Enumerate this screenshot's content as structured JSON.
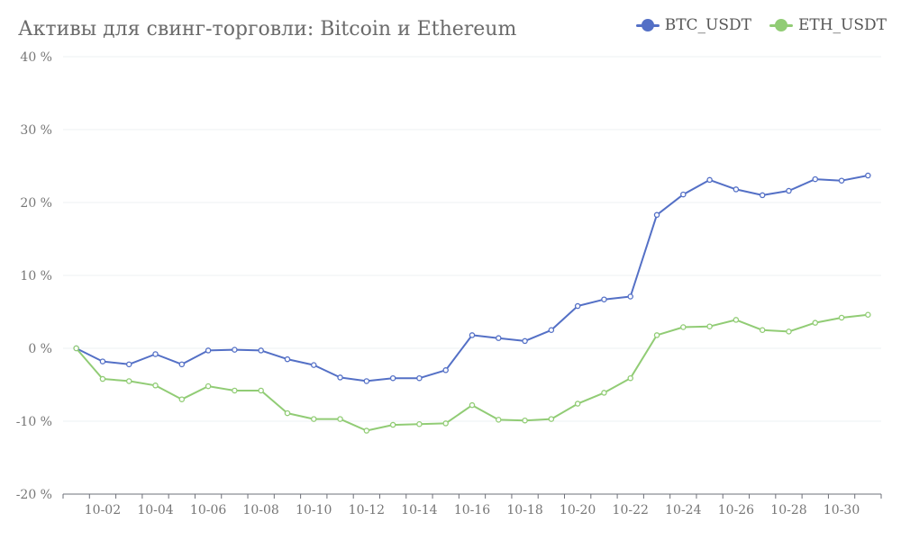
{
  "chart_data": {
    "type": "line",
    "title": "Активы для свинг-торговли: Bitcoin и Ethereum",
    "xlabel": "",
    "ylabel": "",
    "ylim": [
      -20,
      40
    ],
    "yticks": [
      "40 %",
      "30 %",
      "20 %",
      "10 %",
      "0 %",
      "-10 %",
      "-20 %"
    ],
    "ytick_values": [
      40,
      30,
      20,
      10,
      0,
      -10,
      -20
    ],
    "x": [
      "10-01",
      "10-02",
      "10-03",
      "10-04",
      "10-05",
      "10-06",
      "10-07",
      "10-08",
      "10-09",
      "10-10",
      "10-11",
      "10-12",
      "10-13",
      "10-14",
      "10-15",
      "10-16",
      "10-17",
      "10-18",
      "10-19",
      "10-20",
      "10-21",
      "10-22",
      "10-23",
      "10-24",
      "10-25",
      "10-26",
      "10-27",
      "10-28",
      "10-29",
      "10-30",
      "10-31"
    ],
    "xtick_labels": [
      "10-02",
      "10-04",
      "10-06",
      "10-08",
      "10-10",
      "10-12",
      "10-14",
      "10-16",
      "10-18",
      "10-20",
      "10-22",
      "10-24",
      "10-26",
      "10-28",
      "10-30"
    ],
    "grid": true,
    "legend_position": "top-right",
    "series": [
      {
        "name": "BTC_USDT",
        "color": "#5470c6",
        "values": [
          0,
          -1.8,
          -2.2,
          -0.8,
          -2.2,
          -0.3,
          -0.2,
          -0.3,
          -1.5,
          -2.3,
          -4.0,
          -4.5,
          -4.1,
          -4.1,
          -3.0,
          1.8,
          1.4,
          1.0,
          2.5,
          5.8,
          6.7,
          7.1,
          18.3,
          21.1,
          23.1,
          21.8,
          21.0,
          21.6,
          23.2,
          23.0,
          23.7
        ]
      },
      {
        "name": "ETH_USDT",
        "color": "#91cc75",
        "values": [
          0,
          -4.2,
          -4.5,
          -5.1,
          -7.0,
          -5.2,
          -5.8,
          -5.8,
          -8.9,
          -9.7,
          -9.7,
          -11.3,
          -10.5,
          -10.4,
          -10.3,
          -7.8,
          -9.8,
          -9.9,
          -9.7,
          -7.6,
          -6.1,
          -4.1,
          1.8,
          2.9,
          3.0,
          3.9,
          2.5,
          2.3,
          3.5,
          4.2,
          4.6
        ]
      }
    ]
  }
}
